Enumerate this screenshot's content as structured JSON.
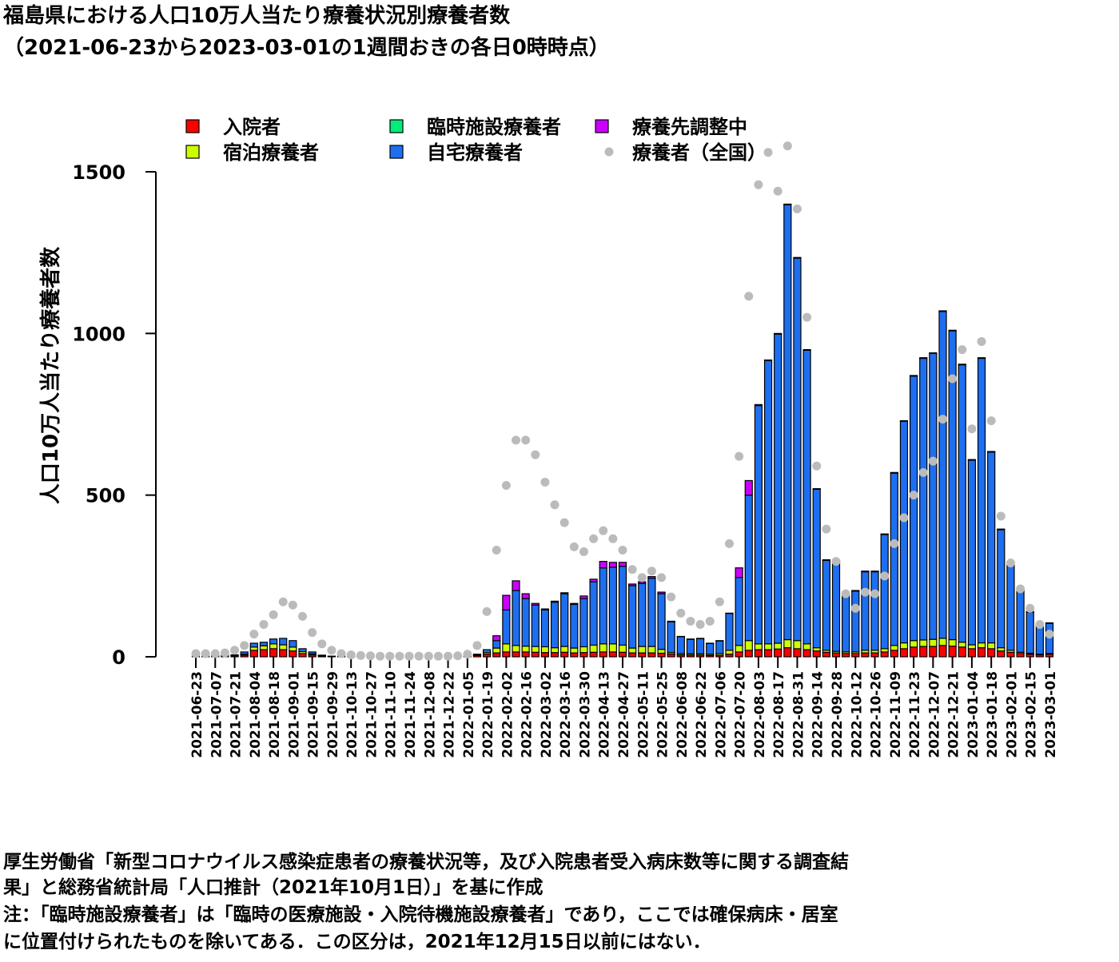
{
  "chart_data": {
    "type": "bar",
    "stacked": true,
    "title": [
      "福島県における人口10万人当たり療養状況別療養者数",
      "（2021-06-23から2023-03-01の1週間おきの各日0時時点）"
    ],
    "ylabel": "人口10万人当たり療養者数",
    "notes": [
      "厚生労働省「新型コロナウイルス感染症患者の療養状況等，及び入院患者受入病床数等に関する調査結",
      "果」と総務省統計局「人口推計（2021年10月1日）」を基に作成",
      "注：「臨時施設療養者」は「臨時の医療施設・入院待機施設療養者」であり，ここでは確保病床・居室",
      "に位置付けられたものを除いてある．この区分は，2021年12月15日以前にはない．"
    ],
    "categories": [
      "2021-06-23",
      null,
      "2021-07-07",
      null,
      "2021-07-21",
      null,
      "2021-08-04",
      null,
      "2021-08-18",
      null,
      "2021-09-01",
      null,
      "2021-09-15",
      null,
      "2021-09-29",
      null,
      "2021-10-13",
      null,
      "2021-10-27",
      null,
      "2021-11-10",
      null,
      "2021-11-24",
      null,
      "2021-12-08",
      null,
      "2021-12-22",
      null,
      "2022-01-05",
      null,
      "2022-01-19",
      null,
      "2022-02-02",
      null,
      "2022-02-16",
      null,
      "2022-03-02",
      null,
      "2022-03-16",
      null,
      "2022-03-30",
      null,
      "2022-04-13",
      null,
      "2022-04-27",
      null,
      "2022-05-11",
      null,
      "2022-05-25",
      null,
      "2022-06-08",
      null,
      "2022-06-22",
      null,
      "2022-07-06",
      null,
      "2022-07-20",
      null,
      "2022-08-03",
      null,
      "2022-08-17",
      null,
      "2022-08-31",
      null,
      "2022-09-14",
      null,
      "2022-09-28",
      null,
      "2022-10-12",
      null,
      "2022-10-26",
      null,
      "2022-11-09",
      null,
      "2022-11-23",
      null,
      "2022-12-07",
      null,
      "2022-12-21",
      null,
      "2023-01-04",
      null,
      "2023-01-18",
      null,
      "2023-02-01",
      null,
      "2023-02-15",
      null,
      "2023-03-01"
    ],
    "ylim": [
      0,
      1500
    ],
    "yticks": [
      0,
      500,
      1000,
      1500
    ],
    "series": [
      {
        "name": "入院者",
        "color": "#ff0000",
        "values": [
          2,
          2,
          2,
          2,
          3,
          5,
          20,
          22,
          25,
          22,
          18,
          10,
          6,
          3,
          1,
          1,
          1,
          1,
          1,
          1,
          1,
          1,
          1,
          1,
          1,
          1,
          1,
          1,
          1,
          4,
          8,
          12,
          15,
          15,
          15,
          14,
          13,
          13,
          14,
          12,
          13,
          14,
          15,
          15,
          14,
          12,
          12,
          12,
          11,
          8,
          6,
          5,
          5,
          4,
          5,
          8,
          15,
          20,
          22,
          22,
          24,
          28,
          25,
          22,
          18,
          14,
          12,
          10,
          10,
          12,
          12,
          15,
          20,
          25,
          30,
          32,
          32,
          35,
          33,
          30,
          25,
          28,
          25,
          18,
          14,
          10,
          8,
          6,
          8
        ]
      },
      {
        "name": "宿泊療養者",
        "color": "#ccff00",
        "values": [
          0,
          0,
          0,
          0,
          0,
          3,
          10,
          12,
          15,
          15,
          12,
          6,
          3,
          1,
          0,
          0,
          0,
          0,
          0,
          0,
          0,
          0,
          0,
          0,
          0,
          0,
          0,
          0,
          0,
          2,
          5,
          15,
          25,
          20,
          18,
          18,
          18,
          15,
          18,
          15,
          18,
          22,
          25,
          25,
          22,
          15,
          20,
          20,
          12,
          5,
          4,
          4,
          4,
          4,
          5,
          12,
          20,
          30,
          18,
          18,
          18,
          25,
          25,
          18,
          10,
          6,
          5,
          5,
          5,
          8,
          8,
          10,
          15,
          18,
          20,
          20,
          22,
          22,
          20,
          15,
          12,
          15,
          18,
          10,
          6,
          4,
          3,
          2,
          2
        ]
      },
      {
        "name": "臨時施設療養者",
        "color": "#00ee77",
        "values": [
          null,
          null,
          null,
          null,
          null,
          null,
          null,
          null,
          null,
          null,
          null,
          null,
          null,
          null,
          null,
          null,
          null,
          null,
          null,
          null,
          null,
          null,
          null,
          null,
          null,
          null,
          0,
          0,
          0,
          0,
          0,
          0,
          0,
          0,
          0,
          0,
          0,
          0,
          0,
          0,
          0,
          0,
          0,
          0,
          0,
          0,
          0,
          0,
          0,
          0,
          0,
          0,
          0,
          0,
          0,
          0,
          0,
          0,
          0,
          0,
          0,
          0,
          0,
          0,
          0,
          0,
          0,
          0,
          0,
          0,
          0,
          0,
          0,
          0,
          0,
          0,
          0,
          0,
          0,
          0,
          0,
          0,
          0,
          0,
          0,
          0,
          0,
          0,
          0
        ]
      },
      {
        "name": "自宅療養者",
        "color": "#1e6ff0",
        "values": [
          0,
          0,
          1,
          2,
          3,
          7,
          12,
          11,
          15,
          20,
          20,
          9,
          6,
          1,
          1,
          1,
          1,
          1,
          1,
          1,
          1,
          0,
          0,
          0,
          0,
          0,
          0,
          0,
          0,
          2,
          9,
          23,
          105,
          170,
          147,
          128,
          114,
          141,
          163,
          135,
          149,
          196,
          235,
          237,
          244,
          193,
          195,
          211,
          172,
          95,
          52,
          45,
          47,
          33,
          39,
          114,
          210,
          450,
          737,
          876,
          956,
          1345,
          1183,
          908,
          490,
          278,
          276,
          173,
          188,
          243,
          243,
          353,
          533,
          685,
          818,
          871,
          884,
          1011,
          955,
          858,
          571,
          880,
          590,
          365,
          263,
          189,
          127,
          85,
          93
        ]
      },
      {
        "name": "療養先調整中",
        "color": "#cc00ff",
        "values": [
          0,
          0,
          0,
          0,
          0,
          0,
          0,
          0,
          0,
          0,
          0,
          0,
          0,
          0,
          0,
          0,
          0,
          0,
          0,
          0,
          0,
          0,
          0,
          0,
          0,
          0,
          0,
          0,
          0,
          0,
          0,
          15,
          45,
          30,
          15,
          5,
          3,
          3,
          3,
          3,
          8,
          8,
          20,
          15,
          12,
          5,
          5,
          5,
          5,
          2,
          1,
          1,
          1,
          1,
          1,
          1,
          30,
          45,
          3,
          2,
          2,
          2,
          2,
          2,
          2,
          2,
          2,
          2,
          2,
          2,
          2,
          2,
          2,
          2,
          2,
          2,
          2,
          2,
          2,
          2,
          2,
          2,
          2,
          2,
          2,
          2,
          2,
          2,
          2
        ]
      },
      {
        "name": "療養者（全国）",
        "type": "scatter",
        "color": "#bbbbbb",
        "values": [
          10,
          10,
          10,
          12,
          20,
          35,
          70,
          100,
          130,
          170,
          160,
          125,
          75,
          40,
          20,
          10,
          6,
          4,
          3,
          2,
          2,
          2,
          2,
          2,
          2,
          2,
          2,
          3,
          8,
          35,
          140,
          330,
          530,
          670,
          670,
          625,
          540,
          470,
          415,
          340,
          325,
          365,
          390,
          365,
          330,
          270,
          245,
          265,
          245,
          185,
          135,
          110,
          100,
          110,
          170,
          350,
          620,
          1115,
          1460,
          1560,
          1440,
          1580,
          1385,
          1050,
          590,
          395,
          295,
          195,
          150,
          200,
          195,
          250,
          350,
          430,
          500,
          570,
          605,
          735,
          860,
          950,
          705,
          975,
          730,
          435,
          290,
          210,
          150,
          100,
          70
        ]
      }
    ]
  }
}
